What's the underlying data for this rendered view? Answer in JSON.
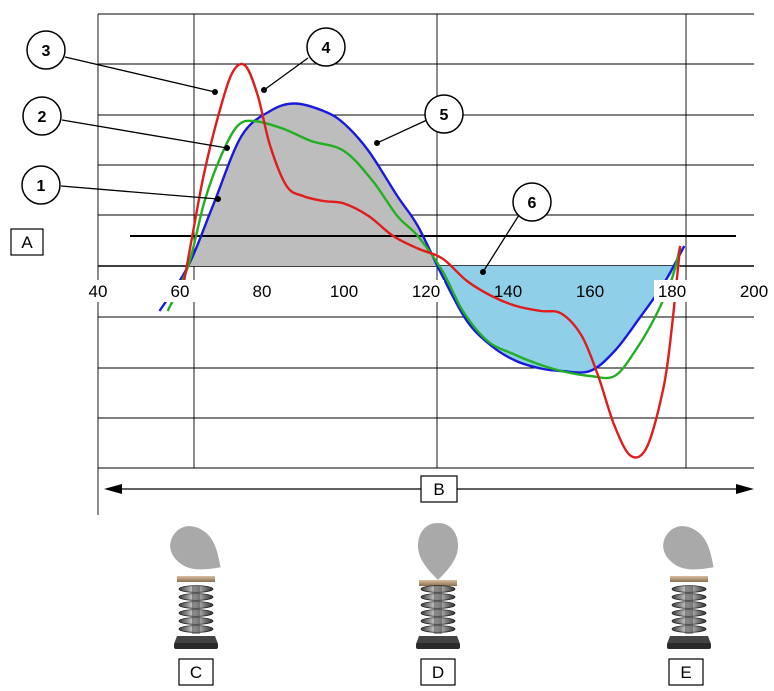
{
  "chart_data": {
    "type": "line",
    "x_ticks": [
      "40",
      "60",
      "80",
      "100",
      "120",
      "140",
      "160",
      "180",
      "200"
    ],
    "xlim": [
      40,
      200
    ],
    "grid": true,
    "series": [
      {
        "color": "#1a1adc",
        "points": [
          [
            55,
            -0.9
          ],
          [
            62,
            0
          ],
          [
            68,
            1.2
          ],
          [
            75,
            2.6
          ],
          [
            82,
            3.1
          ],
          [
            88,
            3.25
          ],
          [
            95,
            3.1
          ],
          [
            100,
            2.85
          ],
          [
            106,
            2.3
          ],
          [
            113,
            1.4
          ],
          [
            118,
            0.8
          ],
          [
            124,
            -0.2
          ],
          [
            130,
            -1.1
          ],
          [
            136,
            -1.6
          ],
          [
            142,
            -1.9
          ],
          [
            148,
            -2.05
          ],
          [
            153,
            -2.1
          ],
          [
            160,
            -2.1
          ],
          [
            166,
            -1.7
          ],
          [
            172,
            -1.05
          ],
          [
            178,
            -0.35
          ],
          [
            183,
            0.4
          ]
        ]
      },
      {
        "color": "#22b022",
        "points": [
          [
            57,
            -0.9
          ],
          [
            62,
            0
          ],
          [
            66,
            1.3
          ],
          [
            70,
            2.2
          ],
          [
            74,
            2.8
          ],
          [
            78,
            2.9
          ],
          [
            85,
            2.75
          ],
          [
            92,
            2.5
          ],
          [
            100,
            2.3
          ],
          [
            107,
            1.7
          ],
          [
            113,
            1.0
          ],
          [
            118,
            0.6
          ],
          [
            124,
            -0.1
          ],
          [
            129,
            -0.9
          ],
          [
            135,
            -1.5
          ],
          [
            141,
            -1.75
          ],
          [
            147,
            -1.95
          ],
          [
            153,
            -2.1
          ],
          [
            160,
            -2.2
          ],
          [
            166,
            -2.2
          ],
          [
            171,
            -1.7
          ],
          [
            176,
            -1.0
          ],
          [
            180,
            -0.25
          ],
          [
            182,
            0.4
          ]
        ]
      },
      {
        "color": "#e01c1c",
        "points": [
          [
            61,
            -0.3
          ],
          [
            63,
            0.6
          ],
          [
            66,
            1.9
          ],
          [
            70,
            3.2
          ],
          [
            73,
            3.9
          ],
          [
            76,
            4.0
          ],
          [
            79,
            3.4
          ],
          [
            82,
            2.4
          ],
          [
            86,
            1.6
          ],
          [
            90,
            1.4
          ],
          [
            95,
            1.3
          ],
          [
            100,
            1.25
          ],
          [
            106,
            1.0
          ],
          [
            112,
            0.6
          ],
          [
            118,
            0.35
          ],
          [
            124,
            0.15
          ],
          [
            130,
            -0.3
          ],
          [
            136,
            -0.6
          ],
          [
            142,
            -0.8
          ],
          [
            148,
            -0.9
          ],
          [
            153,
            -0.95
          ],
          [
            158,
            -1.4
          ],
          [
            162,
            -2.2
          ],
          [
            166,
            -3.2
          ],
          [
            170,
            -3.8
          ],
          [
            174,
            -3.6
          ],
          [
            178,
            -2.4
          ],
          [
            180,
            -1.2
          ],
          [
            182,
            0.4
          ]
        ]
      }
    ],
    "reference_line": {
      "y": 0.6
    },
    "shaded_areas": [
      {
        "fill": "#bdbdbd",
        "between": "blue curve and x-axis",
        "x_range": [
          62,
          123
        ]
      },
      {
        "fill": "#8fcfe8",
        "between": "blue curve and x-axis",
        "x_range": [
          123,
          182
        ]
      }
    ]
  },
  "labels": {
    "A": "A",
    "B": "B",
    "C": "C",
    "D": "D",
    "E": "E"
  },
  "callouts": [
    "1",
    "2",
    "3",
    "4",
    "5",
    "6"
  ]
}
